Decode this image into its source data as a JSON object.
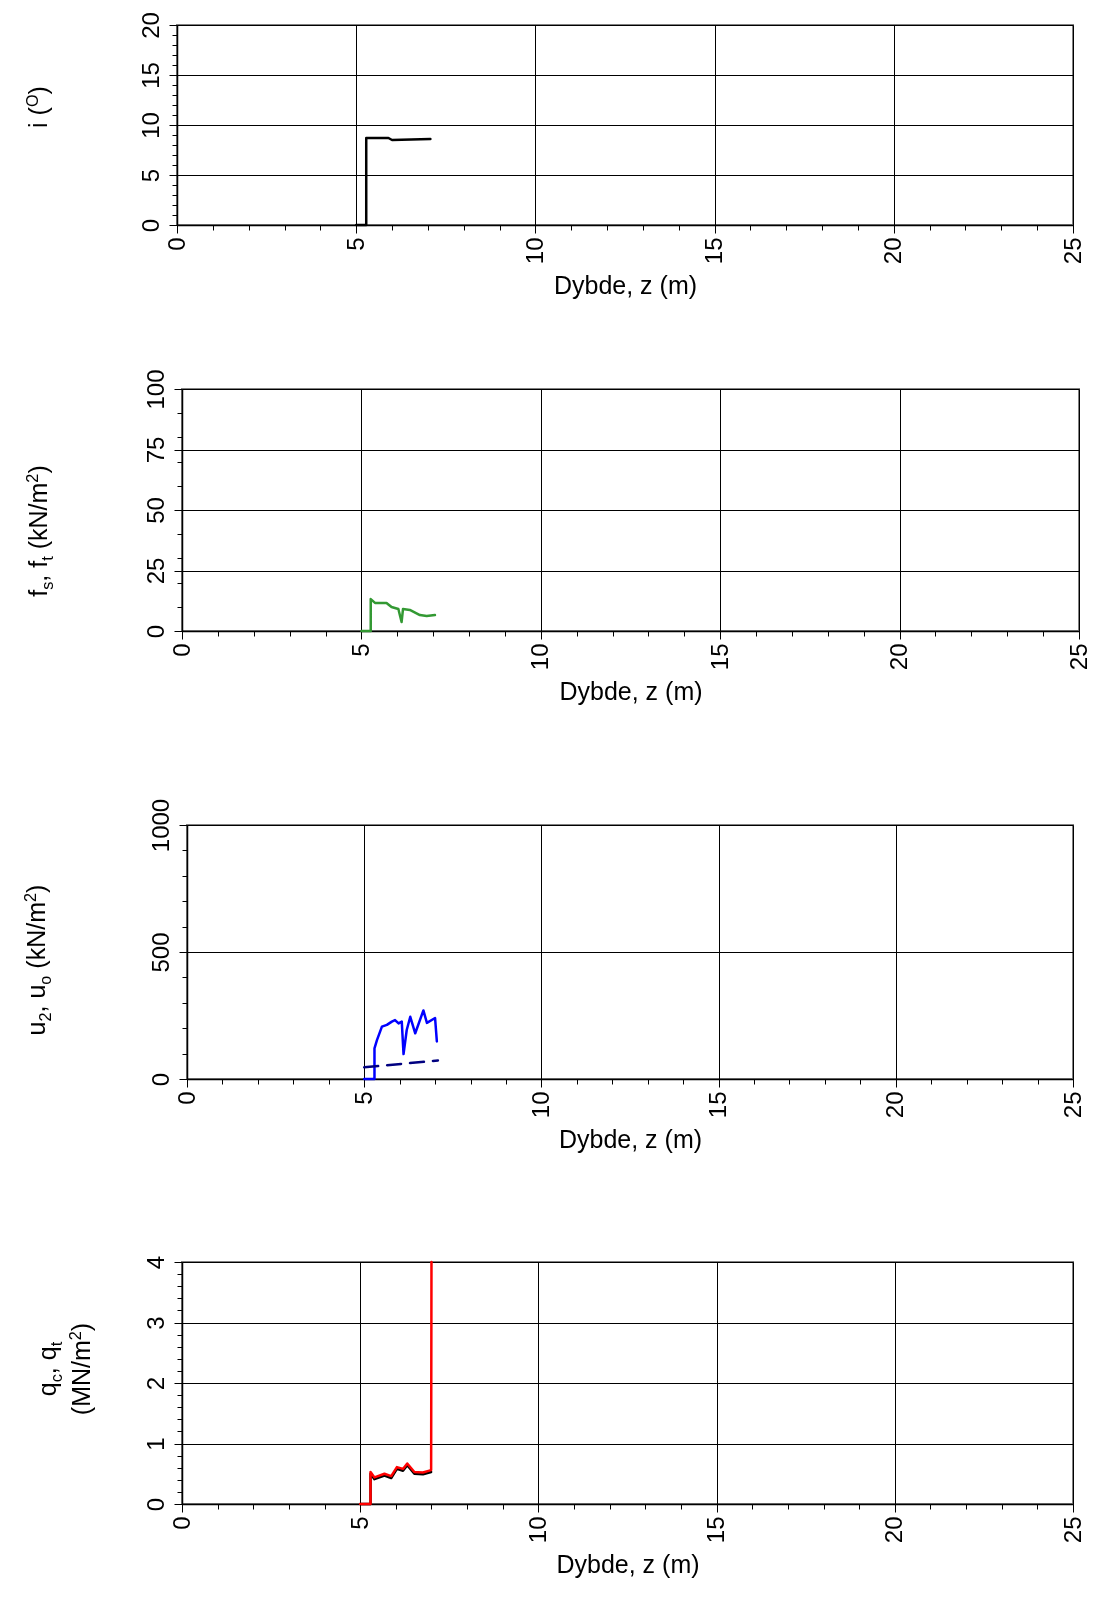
{
  "chart_data": [
    {
      "type": "line",
      "xlabel": "Dybde, z (m)",
      "ylabel": "i ($^{O}$)",
      "xlim": [
        0,
        25
      ],
      "xticks": [
        0,
        {
          "value": 1,
          "label": null
        },
        {
          "value": 2,
          "label": null
        },
        {
          "value": 3,
          "label": null
        },
        {
          "value": 4,
          "label": null
        },
        5,
        {
          "value": 6,
          "label": null
        },
        {
          "value": 7,
          "label": null
        },
        {
          "value": 8,
          "label": null
        },
        {
          "value": 9,
          "label": null
        },
        10,
        {
          "value": 11,
          "label": null
        },
        {
          "value": 12,
          "label": null
        },
        {
          "value": 13,
          "label": null
        },
        {
          "value": 14,
          "label": null
        },
        15,
        {
          "value": 16,
          "label": null
        },
        {
          "value": 17,
          "label": null
        },
        {
          "value": 18,
          "label": null
        },
        {
          "value": 19,
          "label": null
        },
        20,
        {
          "value": 21,
          "label": null
        },
        {
          "value": 22,
          "label": null
        },
        {
          "value": 23,
          "label": null
        },
        {
          "value": 24,
          "label": null
        },
        25
      ],
      "ylim": [
        0,
        20
      ],
      "yticks": [
        0,
        {
          "value": 1,
          "label": null
        },
        {
          "value": 2,
          "label": null
        },
        {
          "value": 3,
          "label": null
        },
        {
          "value": 4,
          "label": null
        },
        5,
        {
          "value": 6,
          "label": null
        },
        {
          "value": 7,
          "label": null
        },
        {
          "value": 8,
          "label": null
        },
        {
          "value": 9,
          "label": null
        },
        10,
        {
          "value": 11,
          "label": null
        },
        {
          "value": 12,
          "label": null
        },
        {
          "value": 13,
          "label": null
        },
        {
          "value": 14,
          "label": null
        },
        15,
        {
          "value": 16,
          "label": null
        },
        {
          "value": 17,
          "label": null
        },
        {
          "value": 18,
          "label": null
        },
        {
          "value": 19,
          "label": null
        },
        20
      ],
      "grid": true,
      "marker": "none",
      "series": [
        {
          "color": "#000000",
          "x": [
            5.0,
            5.28,
            5.28,
            5.9,
            6.0,
            7.07
          ],
          "values": [
            0,
            0,
            8.7,
            8.7,
            8.5,
            8.6
          ]
        }
      ]
    },
    {
      "type": "line",
      "xlabel": "Dybde, z (m)",
      "ylabel": "f$_{s}$, f$_{t}$ (kN/m$^{2}$)",
      "xlim": [
        0,
        25
      ],
      "xticks": [
        0,
        {
          "value": 1,
          "label": null
        },
        {
          "value": 2,
          "label": null
        },
        {
          "value": 3,
          "label": null
        },
        {
          "value": 4,
          "label": null
        },
        5,
        {
          "value": 6,
          "label": null
        },
        {
          "value": 7,
          "label": null
        },
        {
          "value": 8,
          "label": null
        },
        {
          "value": 9,
          "label": null
        },
        10,
        {
          "value": 11,
          "label": null
        },
        {
          "value": 12,
          "label": null
        },
        {
          "value": 13,
          "label": null
        },
        {
          "value": 14,
          "label": null
        },
        15,
        {
          "value": 16,
          "label": null
        },
        {
          "value": 17,
          "label": null
        },
        {
          "value": 18,
          "label": null
        },
        {
          "value": 19,
          "label": null
        },
        20,
        {
          "value": 21,
          "label": null
        },
        {
          "value": 22,
          "label": null
        },
        {
          "value": 23,
          "label": null
        },
        {
          "value": 24,
          "label": null
        },
        25
      ],
      "ylim": [
        0,
        100
      ],
      "yticks": [
        0,
        {
          "value": 10,
          "label": null
        },
        {
          "value": 20,
          "label": null
        },
        25,
        {
          "value": 30,
          "label": null
        },
        {
          "value": 40,
          "label": null
        },
        50,
        {
          "value": 60,
          "label": null
        },
        {
          "value": 70,
          "label": null
        },
        75,
        {
          "value": 80,
          "label": null
        },
        {
          "value": 90,
          "label": null
        },
        100
      ],
      "grid": true,
      "marker": "none",
      "series": [
        {
          "color": "#339933",
          "x": [
            5.0,
            5.26,
            5.26,
            5.38,
            5.7,
            5.84,
            6.03,
            6.12,
            6.16,
            6.35,
            6.63,
            6.82,
            7.05
          ],
          "values": [
            0,
            0,
            13.2,
            11.6,
            11.6,
            9.9,
            9.1,
            3.7,
            9.1,
            8.7,
            6.6,
            6.2,
            6.6
          ]
        }
      ]
    },
    {
      "type": "line",
      "xlabel": "Dybde, z (m)",
      "ylabel": "u$_{2}$, u$_{o}$ (kN/m$^{2}$)",
      "xlim": [
        0,
        25
      ],
      "xticks": [
        0,
        {
          "value": 1,
          "label": null
        },
        {
          "value": 2,
          "label": null
        },
        {
          "value": 3,
          "label": null
        },
        {
          "value": 4,
          "label": null
        },
        5,
        {
          "value": 6,
          "label": null
        },
        {
          "value": 7,
          "label": null
        },
        {
          "value": 8,
          "label": null
        },
        {
          "value": 9,
          "label": null
        },
        10,
        {
          "value": 11,
          "label": null
        },
        {
          "value": 12,
          "label": null
        },
        {
          "value": 13,
          "label": null
        },
        {
          "value": 14,
          "label": null
        },
        15,
        {
          "value": 16,
          "label": null
        },
        {
          "value": 17,
          "label": null
        },
        {
          "value": 18,
          "label": null
        },
        {
          "value": 19,
          "label": null
        },
        20,
        {
          "value": 21,
          "label": null
        },
        {
          "value": 22,
          "label": null
        },
        {
          "value": 23,
          "label": null
        },
        {
          "value": 24,
          "label": null
        },
        25
      ],
      "ylim": [
        0,
        1000
      ],
      "yticks": [
        0,
        {
          "value": 100,
          "label": null
        },
        {
          "value": 200,
          "label": null
        },
        {
          "value": 300,
          "label": null
        },
        {
          "value": 400,
          "label": null
        },
        500,
        {
          "value": 600,
          "label": null
        },
        {
          "value": 700,
          "label": null
        },
        {
          "value": 800,
          "label": null
        },
        {
          "value": 900,
          "label": null
        },
        1000
      ],
      "grid": true,
      "marker": "none",
      "series": [
        {
          "color": "#0000ff",
          "x": [
            5.0,
            5.29,
            5.29,
            5.36,
            5.5,
            5.64,
            5.78,
            5.87,
            5.97,
            6.06,
            6.11,
            6.2,
            6.3,
            6.44,
            6.67,
            6.77,
            7.0,
            7.05
          ],
          "values": [
            0,
            0,
            121,
            153,
            206,
            213,
            226,
            232,
            219,
            226,
            98,
            193,
            245,
            180,
            270,
            221,
            240,
            148
          ]
        },
        {
          "color": "#000080",
          "line_style": "dashed",
          "x": [
            5.0,
            7.08
          ],
          "values": [
            46,
            73
          ]
        }
      ]
    },
    {
      "type": "line",
      "xlabel": "Dybde, z (m)",
      "ylabel": "q$_{c}$, q$_{t}$\n(MN/m$^{2}$)",
      "xlim": [
        0,
        25
      ],
      "xticks": [
        0,
        {
          "value": 1,
          "label": null
        },
        {
          "value": 2,
          "label": null
        },
        {
          "value": 3,
          "label": null
        },
        {
          "value": 4,
          "label": null
        },
        5,
        {
          "value": 6,
          "label": null
        },
        {
          "value": 7,
          "label": null
        },
        {
          "value": 8,
          "label": null
        },
        {
          "value": 9,
          "label": null
        },
        10,
        {
          "value": 11,
          "label": null
        },
        {
          "value": 12,
          "label": null
        },
        {
          "value": 13,
          "label": null
        },
        {
          "value": 14,
          "label": null
        },
        15,
        {
          "value": 16,
          "label": null
        },
        {
          "value": 17,
          "label": null
        },
        {
          "value": 18,
          "label": null
        },
        {
          "value": 19,
          "label": null
        },
        20,
        {
          "value": 21,
          "label": null
        },
        {
          "value": 22,
          "label": null
        },
        {
          "value": 23,
          "label": null
        },
        {
          "value": 24,
          "label": null
        },
        25
      ],
      "ylim": [
        0,
        4
      ],
      "yticks": [
        0,
        {
          "value": 0.2,
          "label": null
        },
        {
          "value": 0.4,
          "label": null
        },
        {
          "value": 0.6,
          "label": null
        },
        {
          "value": 0.8,
          "label": null
        },
        1,
        {
          "value": 1.2,
          "label": null
        },
        {
          "value": 1.4,
          "label": null
        },
        {
          "value": 1.6,
          "label": null
        },
        {
          "value": 1.8,
          "label": null
        },
        2,
        {
          "value": 2.2,
          "label": null
        },
        {
          "value": 2.4,
          "label": null
        },
        {
          "value": 2.6,
          "label": null
        },
        {
          "value": 2.8,
          "label": null
        },
        3,
        {
          "value": 3.2,
          "label": null
        },
        {
          "value": 3.4,
          "label": null
        },
        {
          "value": 3.6,
          "label": null
        },
        {
          "value": 3.8,
          "label": null
        },
        4
      ],
      "grid": true,
      "marker": "none",
      "series": [
        {
          "color": "#000000",
          "x": [
            5.0,
            5.29,
            5.29,
            5.4,
            5.68,
            5.87,
            6.03,
            6.2,
            6.32,
            6.52,
            6.76,
            6.99
          ],
          "values": [
            0,
            0,
            0.5,
            0.41,
            0.47,
            0.43,
            0.58,
            0.55,
            0.64,
            0.5,
            0.49,
            0.53
          ]
        },
        {
          "color": "#ff0000",
          "x": [
            5.0,
            5.29,
            5.29,
            5.4,
            5.68,
            5.87,
            6.03,
            6.2,
            6.32,
            6.52,
            6.76,
            6.99,
            7.0
          ],
          "values": [
            0,
            0,
            0.53,
            0.44,
            0.5,
            0.46,
            0.61,
            0.58,
            0.67,
            0.53,
            0.52,
            0.56,
            4
          ]
        }
      ]
    }
  ]
}
